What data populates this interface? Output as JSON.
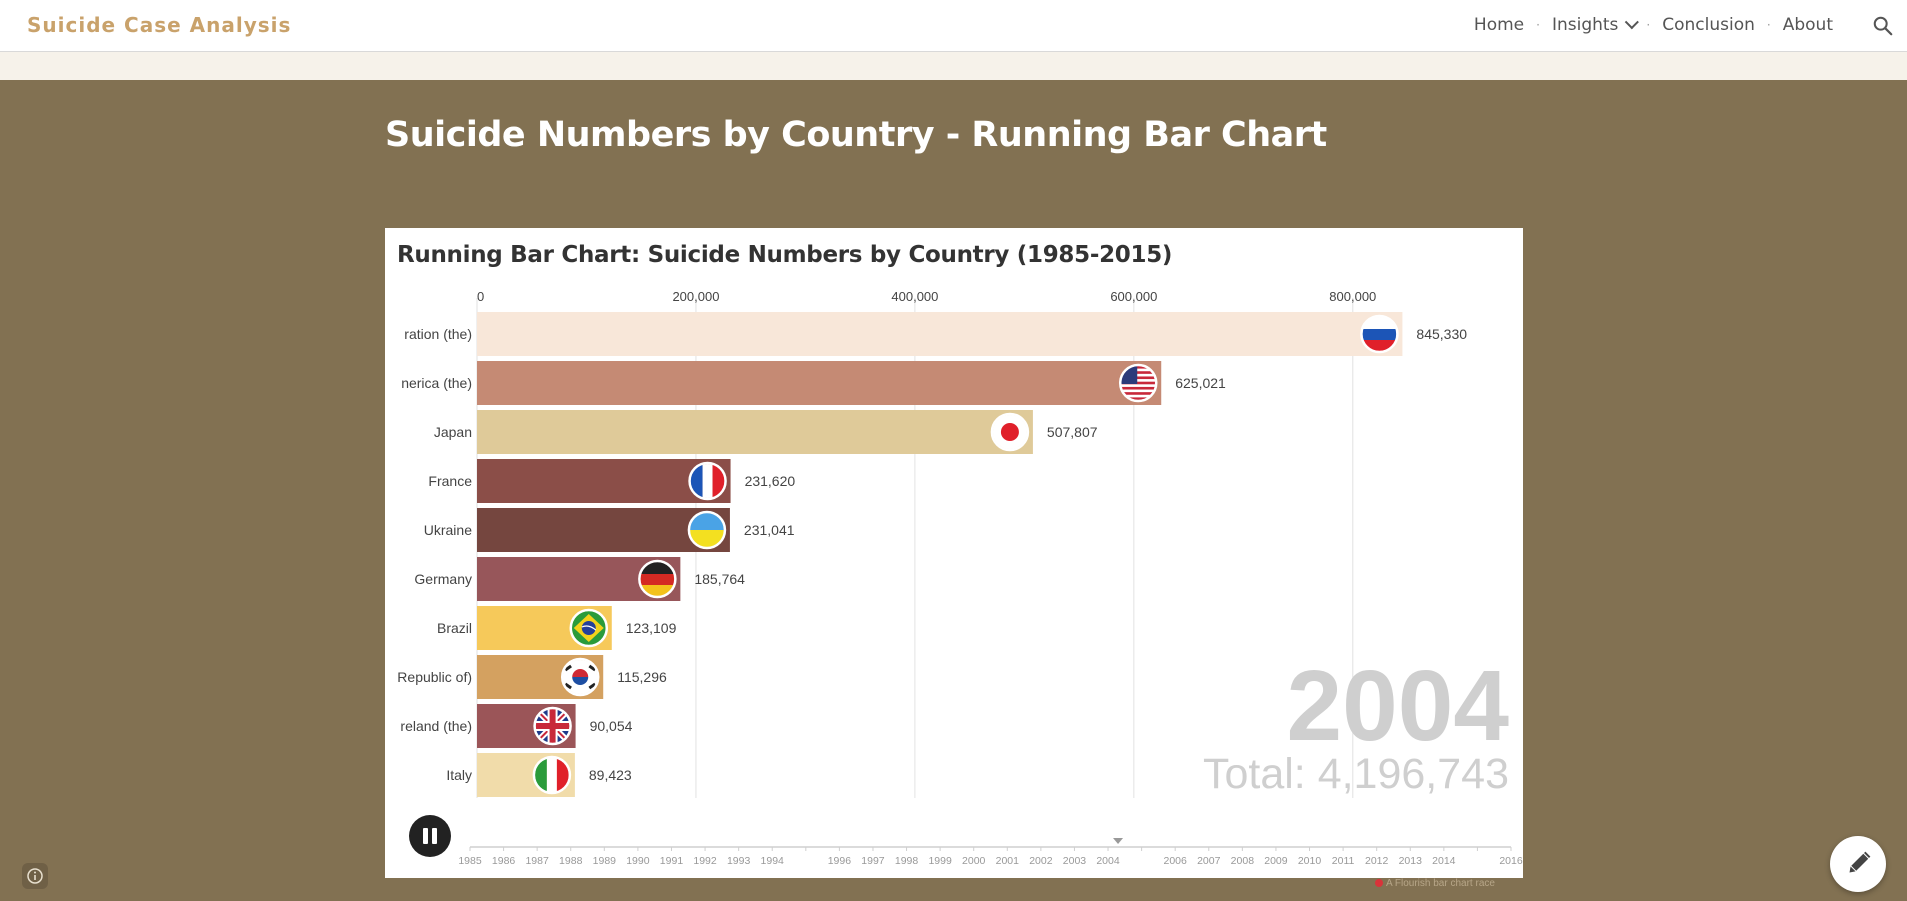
{
  "site": {
    "brand": "Suicide Case Analysis",
    "nav": {
      "home": "Home",
      "insights": "Insights",
      "conclusion": "Conclusion",
      "about": "About"
    },
    "search_icon": "search-icon"
  },
  "page": {
    "title": "Suicide Numbers by Country - Running Bar Chart"
  },
  "credit": "A Flourish bar chart race",
  "colors": {
    "background": "#827152",
    "brand": "#c9a26b",
    "header_bg": "#ffffff"
  },
  "chart_data": {
    "type": "bar",
    "orientation": "horizontal",
    "title": "Running Bar Chart: Suicide Numbers by Country (1985-2015)",
    "year": "2004",
    "total_text": "Total: 4,196,743",
    "xlim": [
      0,
      950000
    ],
    "x_ticks": [
      "0",
      "200,000",
      "400,000",
      "600,000",
      "800,000"
    ],
    "x_tick_values": [
      0,
      200000,
      400000,
      600000,
      800000
    ],
    "grid": true,
    "bars": [
      {
        "label": "ration (the)",
        "value": 845330,
        "value_label": "845,330",
        "color": "#f8e7d9",
        "flag": "russia"
      },
      {
        "label": "nerica (the)",
        "value": 625021,
        "value_label": "625,021",
        "color": "#c58a74",
        "flag": "usa"
      },
      {
        "label": "Japan",
        "value": 507807,
        "value_label": "507,807",
        "color": "#dfca99",
        "flag": "japan"
      },
      {
        "label": "France",
        "value": 231620,
        "value_label": "231,620",
        "color": "#8b4e48",
        "flag": "france"
      },
      {
        "label": "Ukraine",
        "value": 231041,
        "value_label": "231,041",
        "color": "#75463f",
        "flag": "ukraine"
      },
      {
        "label": "Germany",
        "value": 185764,
        "value_label": "185,764",
        "color": "#97565a",
        "flag": "germany"
      },
      {
        "label": "Brazil",
        "value": 123109,
        "value_label": "123,109",
        "color": "#f6c95a",
        "flag": "brazil"
      },
      {
        "label": "Republic of)",
        "value": 115296,
        "value_label": "115,296",
        "color": "#d4a160",
        "flag": "korea"
      },
      {
        "label": "reland (the)",
        "value": 90054,
        "value_label": "90,054",
        "color": "#9b5558",
        "flag": "uk"
      },
      {
        "label": "Italy",
        "value": 89423,
        "value_label": "89,423",
        "color": "#f1dcaa",
        "flag": "italy"
      }
    ],
    "timeline": {
      "years": [
        "1985",
        "1986",
        "1987",
        "1988",
        "1989",
        "1990",
        "1991",
        "1992",
        "1993",
        "1994",
        "1996",
        "1997",
        "1998",
        "1999",
        "2000",
        "2001",
        "2002",
        "2003",
        "2004",
        "2006",
        "2007",
        "2008",
        "2009",
        "2010",
        "2011",
        "2012",
        "2013",
        "2014",
        "2016"
      ],
      "current": "2004"
    }
  }
}
